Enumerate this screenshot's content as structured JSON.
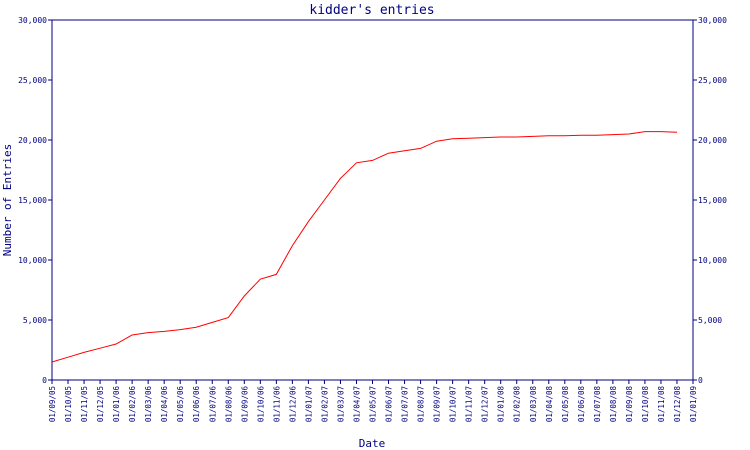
{
  "chart_data": {
    "type": "line",
    "title": "kidder's entries",
    "xlabel": "Date",
    "ylabel": "Number of Entries",
    "ylim": [
      0,
      30000
    ],
    "y_ticks": [
      "0",
      "5,000",
      "10,000",
      "15,000",
      "20,000",
      "25,000",
      "30,000"
    ],
    "y_tick_values": [
      0,
      5000,
      10000,
      15000,
      20000,
      25000,
      30000
    ],
    "grid": false,
    "colors": {
      "axis": "#000080",
      "line": "#ff0000"
    },
    "categories": [
      "01/09/05",
      "01/10/05",
      "01/11/05",
      "01/12/05",
      "01/01/06",
      "01/02/06",
      "01/03/06",
      "01/04/06",
      "01/05/06",
      "01/06/06",
      "01/07/06",
      "01/08/06",
      "01/09/06",
      "01/10/06",
      "01/11/06",
      "01/12/06",
      "01/01/07",
      "01/02/07",
      "01/03/07",
      "01/04/07",
      "01/05/07",
      "01/06/07",
      "01/07/07",
      "01/08/07",
      "01/09/07",
      "01/10/07",
      "01/11/07",
      "01/12/07",
      "01/01/08",
      "01/02/08",
      "01/03/08",
      "01/04/08",
      "01/05/08",
      "01/06/08",
      "01/07/08",
      "01/08/08",
      "01/09/08",
      "01/10/08",
      "01/11/08",
      "01/12/08",
      "01/01/09"
    ],
    "series": [
      {
        "name": "",
        "x": [
          "01/09/05",
          "01/10/05",
          "01/11/05",
          "01/12/05",
          "01/01/06",
          "01/02/06",
          "01/03/06",
          "01/04/06",
          "01/05/06",
          "01/06/06",
          "01/07/06",
          "01/08/06",
          "01/09/06",
          "01/10/06",
          "01/11/06",
          "01/12/06",
          "01/01/07",
          "01/02/07",
          "01/03/07",
          "01/04/07",
          "01/05/07",
          "01/06/07",
          "01/07/07",
          "01/08/07",
          "01/09/07",
          "01/10/07",
          "01/11/07",
          "01/12/07",
          "01/01/08",
          "01/02/08",
          "01/03/08",
          "01/04/08",
          "01/05/08",
          "01/06/08",
          "01/07/08",
          "01/08/08",
          "01/09/08",
          "01/10/08",
          "01/11/08",
          "01/12/08"
        ],
        "values": [
          1500,
          1900,
          2300,
          2650,
          3000,
          3750,
          3950,
          4050,
          4200,
          4400,
          4800,
          5200,
          7000,
          8400,
          8800,
          11200,
          13200,
          15000,
          16800,
          18100,
          18300,
          18900,
          19100,
          19300,
          19900,
          20100,
          20150,
          20200,
          20250,
          20250,
          20300,
          20350,
          20350,
          20400,
          20400,
          20450,
          20500,
          20700,
          20700,
          20650
        ]
      }
    ]
  }
}
